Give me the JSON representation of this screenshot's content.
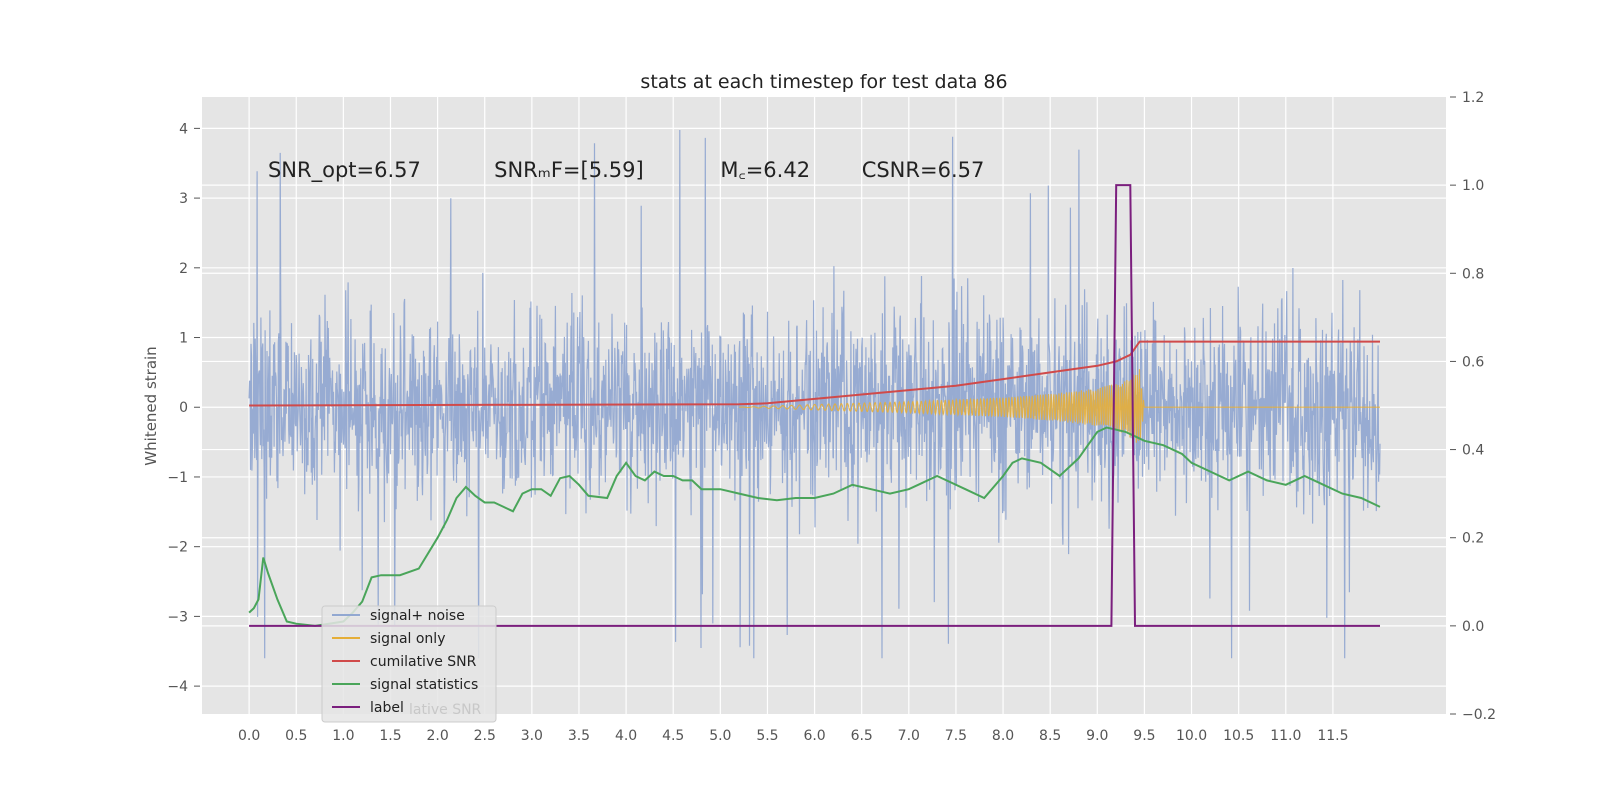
{
  "chart_data": {
    "type": "line",
    "title": "stats at each timestep for test data 86",
    "ylabel": "Whitened strain",
    "xlabel": "",
    "xlim": [
      -0.5,
      12.7
    ],
    "ylim": [
      -4.4,
      4.45
    ],
    "y2lim": [
      -0.2,
      1.2
    ],
    "grid": true,
    "x_ticks": [
      "0.0",
      "0.5",
      "1.0",
      "1.5",
      "2.0",
      "2.5",
      "3.0",
      "3.5",
      "4.0",
      "4.5",
      "5.0",
      "5.5",
      "6.0",
      "6.5",
      "7.0",
      "7.5",
      "8.0",
      "8.5",
      "9.0",
      "9.5",
      "10.0",
      "10.5",
      "11.0",
      "11.5"
    ],
    "x_tick_values": [
      0,
      0.5,
      1,
      1.5,
      2,
      2.5,
      3,
      3.5,
      4,
      4.5,
      5,
      5.5,
      6,
      6.5,
      7,
      7.5,
      8,
      8.5,
      9,
      9.5,
      10,
      10.5,
      11,
      11.5
    ],
    "y_ticks": [
      "4",
      "3",
      "2",
      "1",
      "0",
      "−1",
      "−2",
      "−3",
      "−4"
    ],
    "y_tick_values": [
      4,
      3,
      2,
      1,
      0,
      -1,
      -2,
      -3,
      -4
    ],
    "y2_ticks": [
      "1.2",
      "1.0",
      "0.8",
      "0.6",
      "0.4",
      "0.2",
      "0.0",
      "−0.2"
    ],
    "y2_tick_values": [
      1.2,
      1.0,
      0.8,
      0.6,
      0.4,
      0.2,
      0.0,
      -0.2
    ],
    "annotations": [
      {
        "text": "SNR_opt=6.57",
        "x": 0.2,
        "y": 3.3
      },
      {
        "text": "SNRₘF=[5.59]",
        "x": 2.6,
        "y": 3.3
      },
      {
        "text": "M꜀=6.42",
        "x": 5.0,
        "y": 3.3
      },
      {
        "text": "CSNR=6.57",
        "x": 6.5,
        "y": 3.3
      }
    ],
    "legend": {
      "location": "lower-left",
      "entries": [
        "signal+ noise",
        "signal only",
        "cumilative SNR",
        "signal statistics",
        "label"
      ],
      "ghost_text": "lative SNR"
    },
    "series": [
      {
        "name": "signal+ noise",
        "axis": "left",
        "color": "#92a8d1",
        "style": "noise",
        "x_range": [
          0,
          12.0
        ],
        "envelope": 2.0,
        "peak": 4.1
      },
      {
        "name": "signal only",
        "axis": "left",
        "color": "#e5ae38",
        "style": "chirp",
        "points": [
          [
            5.2,
            0
          ],
          [
            6.0,
            0.04
          ],
          [
            7.0,
            0.08
          ],
          [
            8.0,
            0.14
          ],
          [
            8.5,
            0.19
          ],
          [
            9.0,
            0.27
          ],
          [
            9.3,
            0.38
          ],
          [
            9.45,
            0.55
          ],
          [
            9.5,
            0
          ],
          [
            12.0,
            0
          ]
        ]
      },
      {
        "name": "cumilative SNR",
        "axis": "right",
        "color": "#d04a4a",
        "style": "line",
        "points": [
          [
            0,
            0.5
          ],
          [
            5.2,
            0.503
          ],
          [
            5.5,
            0.505
          ],
          [
            6.0,
            0.515
          ],
          [
            6.5,
            0.525
          ],
          [
            7.0,
            0.535
          ],
          [
            7.5,
            0.545
          ],
          [
            8.0,
            0.56
          ],
          [
            8.5,
            0.575
          ],
          [
            9.0,
            0.59
          ],
          [
            9.2,
            0.6
          ],
          [
            9.35,
            0.615
          ],
          [
            9.45,
            0.645
          ],
          [
            12.0,
            0.645
          ]
        ]
      },
      {
        "name": "signal statistics",
        "axis": "right",
        "color": "#4aa55a",
        "style": "line",
        "points": [
          [
            0,
            0.03
          ],
          [
            0.05,
            0.04
          ],
          [
            0.1,
            0.06
          ],
          [
            0.15,
            0.155
          ],
          [
            0.2,
            0.12
          ],
          [
            0.3,
            0.06
          ],
          [
            0.4,
            0.01
          ],
          [
            0.5,
            0.005
          ],
          [
            0.7,
            0.0
          ],
          [
            1.0,
            0.01
          ],
          [
            1.1,
            0.03
          ],
          [
            1.2,
            0.055
          ],
          [
            1.3,
            0.11
          ],
          [
            1.4,
            0.115
          ],
          [
            1.6,
            0.115
          ],
          [
            1.8,
            0.13
          ],
          [
            2.0,
            0.2
          ],
          [
            2.1,
            0.24
          ],
          [
            2.2,
            0.29
          ],
          [
            2.3,
            0.315
          ],
          [
            2.4,
            0.295
          ],
          [
            2.5,
            0.28
          ],
          [
            2.6,
            0.28
          ],
          [
            2.7,
            0.27
          ],
          [
            2.8,
            0.26
          ],
          [
            2.9,
            0.3
          ],
          [
            3.0,
            0.31
          ],
          [
            3.1,
            0.31
          ],
          [
            3.2,
            0.295
          ],
          [
            3.3,
            0.335
          ],
          [
            3.4,
            0.34
          ],
          [
            3.5,
            0.32
          ],
          [
            3.6,
            0.295
          ],
          [
            3.8,
            0.29
          ],
          [
            3.9,
            0.34
          ],
          [
            4.0,
            0.37
          ],
          [
            4.1,
            0.34
          ],
          [
            4.2,
            0.33
          ],
          [
            4.3,
            0.35
          ],
          [
            4.4,
            0.34
          ],
          [
            4.5,
            0.34
          ],
          [
            4.6,
            0.33
          ],
          [
            4.7,
            0.33
          ],
          [
            4.8,
            0.31
          ],
          [
            5.0,
            0.31
          ],
          [
            5.2,
            0.3
          ],
          [
            5.4,
            0.29
          ],
          [
            5.6,
            0.285
          ],
          [
            5.8,
            0.29
          ],
          [
            6.0,
            0.29
          ],
          [
            6.2,
            0.3
          ],
          [
            6.4,
            0.32
          ],
          [
            6.6,
            0.31
          ],
          [
            6.8,
            0.3
          ],
          [
            7.0,
            0.31
          ],
          [
            7.1,
            0.32
          ],
          [
            7.3,
            0.34
          ],
          [
            7.4,
            0.33
          ],
          [
            7.6,
            0.31
          ],
          [
            7.8,
            0.29
          ],
          [
            8.0,
            0.34
          ],
          [
            8.1,
            0.37
          ],
          [
            8.2,
            0.38
          ],
          [
            8.4,
            0.37
          ],
          [
            8.6,
            0.34
          ],
          [
            8.8,
            0.38
          ],
          [
            8.9,
            0.41
          ],
          [
            9.0,
            0.44
          ],
          [
            9.1,
            0.45
          ],
          [
            9.2,
            0.445
          ],
          [
            9.3,
            0.44
          ],
          [
            9.4,
            0.43
          ],
          [
            9.5,
            0.42
          ],
          [
            9.7,
            0.41
          ],
          [
            9.9,
            0.39
          ],
          [
            10.0,
            0.37
          ],
          [
            10.2,
            0.35
          ],
          [
            10.4,
            0.33
          ],
          [
            10.6,
            0.35
          ],
          [
            10.8,
            0.33
          ],
          [
            11.0,
            0.32
          ],
          [
            11.2,
            0.34
          ],
          [
            11.4,
            0.32
          ],
          [
            11.6,
            0.3
          ],
          [
            11.8,
            0.29
          ],
          [
            12.0,
            0.27
          ]
        ]
      },
      {
        "name": "label",
        "axis": "right",
        "color": "#7b1f7e",
        "style": "line",
        "points": [
          [
            0,
            0.0
          ],
          [
            9.15,
            0.0
          ],
          [
            9.2,
            1.0
          ],
          [
            9.35,
            1.0
          ],
          [
            9.4,
            0.0
          ],
          [
            12.0,
            0.0
          ]
        ]
      }
    ]
  }
}
